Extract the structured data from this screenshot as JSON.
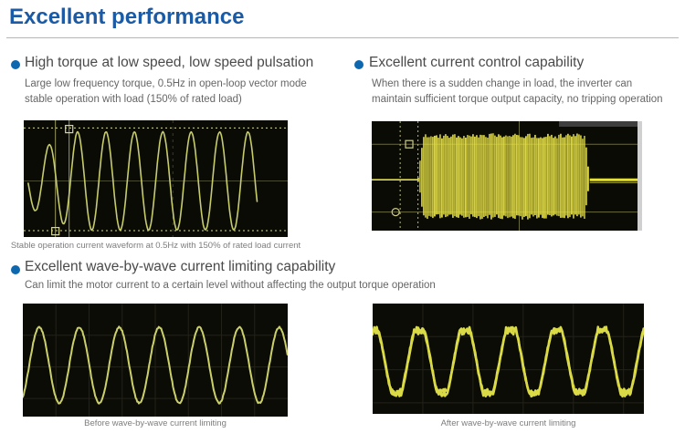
{
  "page": {
    "title": "Excellent performance"
  },
  "colors": {
    "title_blue": "#1b5aa5",
    "bullet_blue": "#0d68af",
    "heading_gray": "#4a4a4a",
    "body_gray": "#666666",
    "caption_gray": "#7d7d7d",
    "scope_background": "#0b0b06"
  },
  "sections": [
    {
      "heading": "High torque at low speed, low speed pulsation",
      "desc1": "Large low frequency torque, 0.5Hz in open-loop vector mode",
      "desc2": "stable operation with load (150% of rated load)"
    },
    {
      "heading": "Excellent current control capability",
      "desc1": "When there is a sudden change in load, the inverter can",
      "desc2": "maintain sufficient torque output capacity, no tripping operation"
    },
    {
      "heading": "Excellent wave-by-wave current limiting capability",
      "desc1": "Can limit the motor current to a certain level without affecting the output torque operation"
    }
  ],
  "captions": {
    "scope1": "Stable operation current waveform at 0.5Hz with 150% of rated load current",
    "before": "Before wave-by-wave current limiting",
    "after": "After wave-by-wave current limiting"
  },
  "chart_data": [
    {
      "id": "low-speed-sine-scope",
      "type": "line",
      "description": "0.5Hz sine current waveform, stable operation at 150% rated load",
      "bg": "#0b0b06",
      "trace_color": "#c6cc6b",
      "cursor_color": "#d8d890",
      "wave": {
        "kind": "sine",
        "mid": 0.52,
        "amp": 0.42,
        "period": 0.1076,
        "phase_peak": 0.204,
        "t_start": 0.017,
        "t_end": 0.885,
        "ramp_until": 0.2,
        "ramp_start_amp": 0.5,
        "width": 1.6,
        "jitter": 0.4
      },
      "dotted_h": [
        0.065,
        0.945
      ],
      "solid_h": [
        {
          "y": 0.52,
          "color": "#4a4a30"
        }
      ],
      "solid_v": [
        {
          "x": 0.12,
          "color": "#9a9a60"
        },
        {
          "x": 0.172,
          "color": "#9a9a60"
        }
      ],
      "dashed_v": [
        {
          "x": 0.565,
          "color": "#3c3c28"
        }
      ],
      "markers": [
        {
          "shape": "square",
          "x": 0.172,
          "y": 0.075
        },
        {
          "shape": "square",
          "x": 0.12,
          "y": 0.95
        }
      ]
    },
    {
      "id": "sudden-load-burst-scope",
      "type": "line",
      "description": "Current envelope during sudden load change, no tripping",
      "bg": "#0b0b06",
      "trace_color": "#e6e139",
      "cursor_color": "#cccc88",
      "wave": {
        "kind": "burst",
        "mid": 0.535,
        "idle_end": 0.175,
        "burst_end": 0.82,
        "top": 0.135,
        "bottom": 0.875,
        "taper": 0.018,
        "idle_width": 1.6,
        "tail_width": 3
      },
      "solid_h": [
        {
          "y": 0.21,
          "color": "#6a6a40"
        },
        {
          "y": 0.83,
          "color": "#6a6a40"
        }
      ],
      "solid_v": [
        {
          "x": 0.555,
          "color": "#6a6a40"
        }
      ],
      "dotted_v": [
        {
          "x": 0.107,
          "color": "#b9b97a"
        },
        {
          "x": 0.174,
          "color": "#b9b97a"
        }
      ],
      "markers": [
        {
          "shape": "square",
          "x": 0.141,
          "y": 0.21
        },
        {
          "shape": "circle",
          "x": 0.09,
          "y": 0.83
        }
      ]
    },
    {
      "id": "before-limiting-scope",
      "type": "line",
      "description": "Motor current sine wave before wave-by-wave current limiting",
      "bg": "#0c0c07",
      "trace_color": "#cbd168",
      "grid": {
        "vx_step": 0.125,
        "hy_step": 0.28,
        "color": "#222218"
      },
      "wave": {
        "kind": "sine",
        "mid": 0.545,
        "amp": 0.335,
        "period": 0.151,
        "phase_peak": 0.062,
        "t_start": 0,
        "t_end": 1,
        "width": 2,
        "jitter": 0.8
      }
    },
    {
      "id": "after-limiting-scope",
      "type": "line",
      "description": "Motor current clipped at limit level after wave-by-wave current limiting",
      "bg": "#0c0c07",
      "trace_color": "#d9da45",
      "grid": {
        "vx_step": 0.185,
        "hy_step": 0.3,
        "color": "#222218"
      },
      "wave": {
        "kind": "sine",
        "mid": 0.52,
        "amp": 0.36,
        "clip": 0.78,
        "period": 0.169,
        "phase_peak": 0.003,
        "t_start": 0,
        "t_end": 1,
        "width": 2.6,
        "jitter": 1.4,
        "passes": 2
      }
    }
  ]
}
